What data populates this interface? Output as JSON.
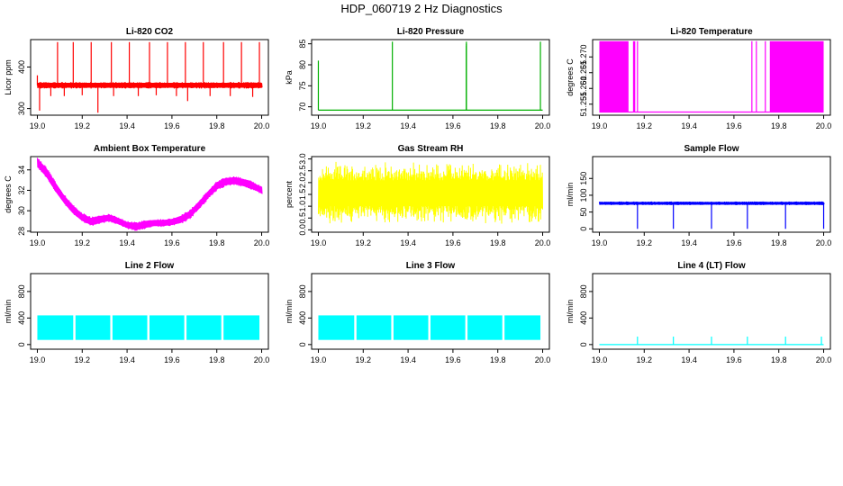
{
  "figure": {
    "title": "HDP_060719  2 Hz Diagnostics"
  },
  "chart_data": [
    {
      "type": "line",
      "title": "Li-820 CO2",
      "xlabel": "",
      "ylabel": "Licor ppm",
      "color": "#ff0000",
      "xlim": [
        18.97,
        20.03
      ],
      "ylim": [
        284,
        466
      ],
      "xticks": [
        "19.0",
        "19.2",
        "19.4",
        "19.6",
        "19.8",
        "20.0"
      ],
      "yticks": [
        "300",
        "400"
      ],
      "series": [
        {
          "kind": "band",
          "x": [
            19.0,
            20.0
          ],
          "lower": [
            350,
            350
          ],
          "upper": [
            362,
            362
          ]
        },
        {
          "kind": "spikes",
          "x": [
            19.0,
            19.09,
            19.16,
            19.24,
            19.33,
            19.41,
            19.5,
            19.58,
            19.66,
            19.74,
            19.83,
            19.91,
            19.99
          ],
          "y": [
            380,
            460,
            460,
            460,
            460,
            460,
            460,
            460,
            460,
            460,
            460,
            460,
            460
          ]
        },
        {
          "kind": "spikes",
          "x": [
            19.01,
            19.06,
            19.12,
            19.2,
            19.27,
            19.34,
            19.45,
            19.53,
            19.62,
            19.67,
            19.77,
            19.86,
            19.96
          ],
          "y": [
            295,
            330,
            330,
            332,
            290,
            330,
            330,
            332,
            330,
            318,
            330,
            330,
            328
          ]
        }
      ]
    },
    {
      "type": "line",
      "title": "Li-820 Pressure",
      "xlabel": "",
      "ylabel": "kPa",
      "color": "#00b000",
      "xlim": [
        18.97,
        20.03
      ],
      "ylim": [
        68,
        86
      ],
      "xticks": [
        "19.0",
        "19.2",
        "19.4",
        "19.6",
        "19.8",
        "20.0"
      ],
      "yticks": [
        "70",
        "75",
        "80",
        "85"
      ],
      "series": [
        {
          "kind": "line",
          "x": [
            19.0,
            20.0
          ],
          "y": [
            69.2,
            69.2
          ]
        },
        {
          "kind": "spikes",
          "x": [
            19.0,
            19.33,
            19.66,
            19.66,
            19.66,
            19.99
          ],
          "y": [
            81,
            85.5,
            85.5,
            85,
            84.5,
            85.5
          ]
        }
      ]
    },
    {
      "type": "line",
      "title": "Li-820 Temperature",
      "xlabel": "",
      "ylabel": "degrees C",
      "color": "#ff00ff",
      "xlim": [
        18.97,
        20.03
      ],
      "ylim": [
        51.2515,
        51.2755
      ],
      "xticks": [
        "19.0",
        "19.2",
        "19.4",
        "19.6",
        "19.8",
        "20.0"
      ],
      "yticks": [
        "51.255",
        "51.260",
        "51.265",
        "51.270"
      ],
      "series": [
        {
          "kind": "line",
          "x": [
            19.0,
            20.0
          ],
          "y": [
            51.2525,
            51.2525
          ]
        },
        {
          "kind": "blocks",
          "x0": [
            19.0,
            19.15,
            19.76
          ],
          "x1": [
            19.13,
            19.16,
            20.0
          ],
          "lower": 51.2525,
          "upper": 51.275
        },
        {
          "kind": "spikes",
          "x": [
            19.17,
            19.68,
            19.7,
            19.74
          ],
          "y": [
            51.275,
            51.275,
            51.275,
            51.275
          ]
        }
      ]
    },
    {
      "type": "line",
      "title": "Ambient Box Temperature",
      "xlabel": "",
      "ylabel": "degrees C",
      "color": "#ff00ff",
      "xlim": [
        18.97,
        20.03
      ],
      "ylim": [
        27.9,
        35.3
      ],
      "xticks": [
        "19.0",
        "19.2",
        "19.4",
        "19.6",
        "19.8",
        "20.0"
      ],
      "yticks": [
        "28",
        "30",
        "32",
        "34"
      ],
      "series": [
        {
          "kind": "band",
          "x": [
            19.0,
            19.04,
            19.08,
            19.12,
            19.16,
            19.2,
            19.24,
            19.28,
            19.32,
            19.36,
            19.4,
            19.44,
            19.48,
            19.52,
            19.56,
            19.6,
            19.64,
            19.68,
            19.72,
            19.76,
            19.8,
            19.84,
            19.88,
            19.92,
            19.96,
            20.0
          ],
          "lower": [
            34.3,
            33.3,
            31.9,
            30.7,
            29.7,
            29.0,
            28.6,
            28.8,
            29.0,
            28.7,
            28.3,
            28.1,
            28.3,
            28.5,
            28.5,
            28.6,
            28.8,
            29.3,
            30.2,
            31.2,
            32.1,
            32.5,
            32.6,
            32.4,
            32.1,
            31.7
          ],
          "upper": [
            35.1,
            34.2,
            32.8,
            31.5,
            30.5,
            29.7,
            29.3,
            29.5,
            29.6,
            29.3,
            28.9,
            28.8,
            29.0,
            29.1,
            29.1,
            29.2,
            29.5,
            30.0,
            30.9,
            31.9,
            32.8,
            33.2,
            33.3,
            33.1,
            32.8,
            32.3
          ]
        }
      ]
    },
    {
      "type": "line",
      "title": "Gas Stream RH",
      "xlabel": "",
      "ylabel": "percent",
      "color": "#ffff00",
      "xlim": [
        18.97,
        20.03
      ],
      "ylim": [
        -0.1,
        3.1
      ],
      "xticks": [
        "19.0",
        "19.2",
        "19.4",
        "19.6",
        "19.8",
        "20.0"
      ],
      "yticks": [
        "0.0",
        "0.5",
        "1.0",
        "1.5",
        "2.0",
        "2.5",
        "3.0"
      ],
      "series": [
        {
          "kind": "noise",
          "x": [
            19.0,
            20.0
          ],
          "center": [
            1.55,
            1.55
          ],
          "amplitude": 1.35,
          "peak_max": 2.95,
          "peak_min": 0.05
        }
      ]
    },
    {
      "type": "line",
      "title": "Sample Flow",
      "xlabel": "",
      "ylabel": "ml/min",
      "color": "#0000ff",
      "xlim": [
        18.97,
        20.03
      ],
      "ylim": [
        -10,
        215
      ],
      "xticks": [
        "19.0",
        "19.2",
        "19.4",
        "19.6",
        "19.8",
        "20.0"
      ],
      "yticks": [
        "0",
        "50",
        "100",
        "150"
      ],
      "series": [
        {
          "kind": "band",
          "x": [
            19.0,
            20.0
          ],
          "lower": [
            72,
            72
          ],
          "upper": [
            80,
            80
          ]
        },
        {
          "kind": "spikes",
          "x": [
            19.17,
            19.33,
            19.5,
            19.66,
            19.83,
            20.0
          ],
          "y": [
            0,
            0,
            0,
            0,
            0,
            0
          ]
        }
      ]
    },
    {
      "type": "line",
      "title": "Line 2 Flow",
      "xlabel": "",
      "ylabel": "ml/min",
      "color": "#00ffff",
      "xlim": [
        18.97,
        20.03
      ],
      "ylim": [
        -70,
        1070
      ],
      "xticks": [
        "19.0",
        "19.2",
        "19.4",
        "19.6",
        "19.8",
        "20.0"
      ],
      "yticks": [
        "0",
        "400",
        "800"
      ],
      "series": [
        {
          "kind": "blocks",
          "x0": [
            19.0,
            19.17,
            19.335,
            19.5,
            19.665,
            19.83
          ],
          "x1": [
            19.16,
            19.325,
            19.49,
            19.655,
            19.82,
            19.99
          ],
          "lower": 70,
          "upper": 440
        }
      ]
    },
    {
      "type": "line",
      "title": "Line 3 Flow",
      "xlabel": "",
      "ylabel": "ml/min",
      "color": "#00ffff",
      "xlim": [
        18.97,
        20.03
      ],
      "ylim": [
        -70,
        1070
      ],
      "xticks": [
        "19.0",
        "19.2",
        "19.4",
        "19.6",
        "19.8",
        "20.0"
      ],
      "yticks": [
        "0",
        "400",
        "800"
      ],
      "series": [
        {
          "kind": "blocks",
          "x0": [
            19.0,
            19.17,
            19.335,
            19.5,
            19.665,
            19.83
          ],
          "x1": [
            19.16,
            19.325,
            19.49,
            19.655,
            19.82,
            19.99
          ],
          "lower": 70,
          "upper": 440
        }
      ]
    },
    {
      "type": "line",
      "title": "Line 4 (LT) Flow",
      "xlabel": "",
      "ylabel": "ml/min",
      "color": "#00ffff",
      "xlim": [
        18.97,
        20.03
      ],
      "ylim": [
        -70,
        1070
      ],
      "xticks": [
        "19.0",
        "19.2",
        "19.4",
        "19.6",
        "19.8",
        "20.0"
      ],
      "yticks": [
        "0",
        "400",
        "800"
      ],
      "series": [
        {
          "kind": "line",
          "x": [
            19.0,
            20.0
          ],
          "y": [
            0,
            0
          ]
        },
        {
          "kind": "spikes",
          "x": [
            19.17,
            19.33,
            19.5,
            19.66,
            19.83,
            19.99
          ],
          "y": [
            120,
            120,
            120,
            120,
            120,
            120
          ]
        }
      ]
    }
  ]
}
